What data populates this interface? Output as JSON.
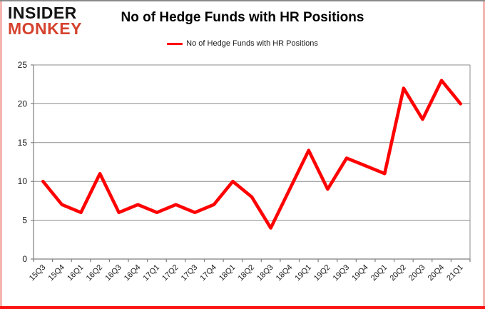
{
  "branding": {
    "line1": "INSIDER",
    "line2": "MONKEY"
  },
  "title": "No of Hedge Funds with HR Positions",
  "legend": {
    "label": "No of Hedge Funds with HR Positions"
  },
  "chart_data": {
    "type": "line",
    "title": "No of Hedge Funds with HR Positions",
    "categories": [
      "15Q3",
      "15Q4",
      "16Q1",
      "16Q2",
      "16Q3",
      "16Q4",
      "17Q1",
      "17Q2",
      "17Q3",
      "17Q4",
      "18Q1",
      "18Q2",
      "18Q3",
      "18Q4",
      "19Q1",
      "19Q2",
      "19Q3",
      "19Q4",
      "20Q1",
      "20Q2",
      "20Q3",
      "20Q4",
      "21Q1"
    ],
    "series": [
      {
        "name": "No of Hedge Funds with HR Positions",
        "color": "#ff0000",
        "values": [
          10,
          7,
          6,
          11,
          6,
          7,
          6,
          7,
          6,
          7,
          10,
          8,
          4,
          9,
          14,
          9,
          13,
          12,
          11,
          22,
          18,
          23,
          20
        ]
      }
    ],
    "xlabel": "",
    "ylabel": "",
    "ylim": [
      0,
      25
    ],
    "yticks": [
      0,
      5,
      10,
      15,
      20,
      25
    ],
    "grid": true,
    "legend_position": "top-center"
  },
  "colors": {
    "line": "#ff0000",
    "grid": "#8c8c8c",
    "axis": "#7f7f7f",
    "tick_text": "#1a1a1a",
    "logo_red": "#d5422e",
    "border_gray": "#8a8a8a",
    "border_pink": "#f5b5b0",
    "border_red": "#fb1212"
  }
}
